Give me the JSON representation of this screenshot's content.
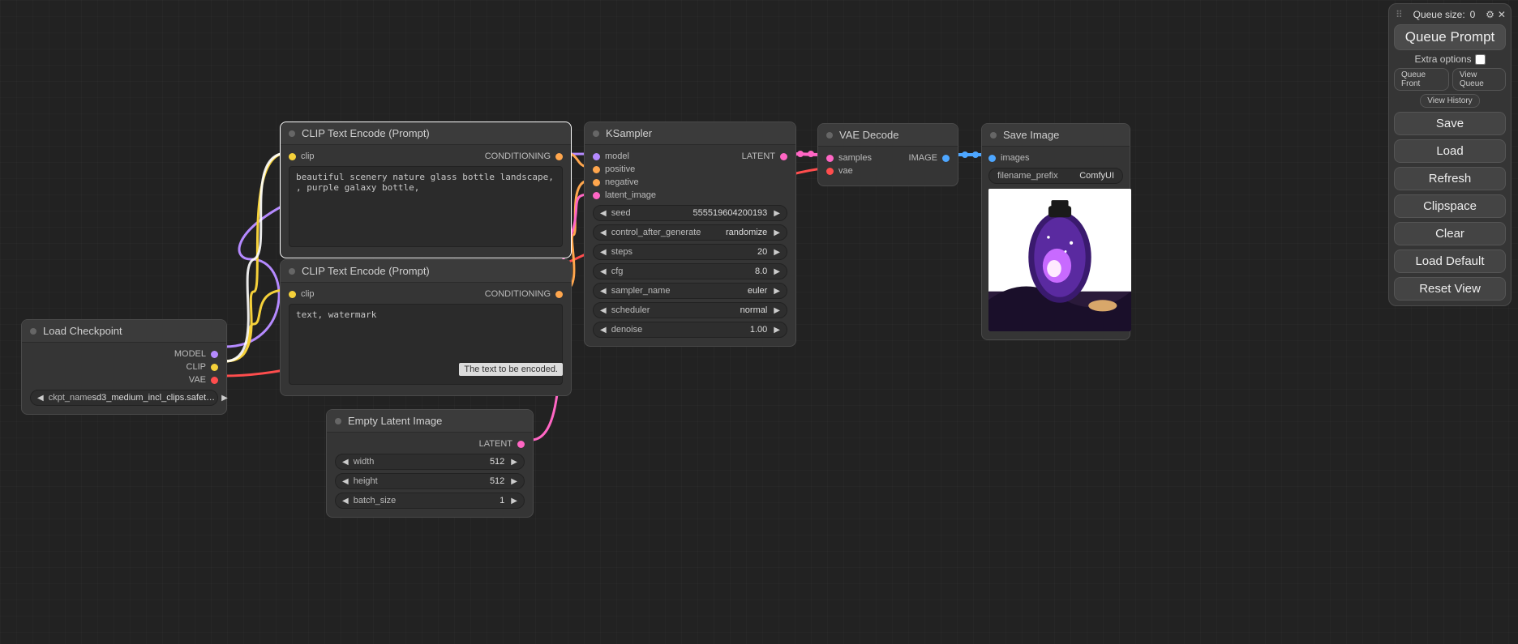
{
  "colors": {
    "model": "#b58aff",
    "clip": "#f5d13a",
    "vae": "#ff4d4d",
    "conditioning": "#ffa64d",
    "latent": "#ff66c4",
    "image": "#4da6ff",
    "neutral": "#bcbcbc"
  },
  "panel": {
    "queue_label": "Queue size:",
    "queue_size": 0,
    "queue_prompt": "Queue Prompt",
    "extra_options": "Extra options",
    "queue_front": "Queue Front",
    "view_queue": "View Queue",
    "view_history": "View History",
    "save": "Save",
    "load": "Load",
    "refresh": "Refresh",
    "clipspace": "Clipspace",
    "clear": "Clear",
    "load_default": "Load Default",
    "reset_view": "Reset View"
  },
  "nodes": {
    "load_checkpoint": {
      "title": "Load Checkpoint",
      "outputs": {
        "model": "MODEL",
        "clip": "CLIP",
        "vae": "VAE"
      },
      "param_label": "ckpt_name",
      "param_value": "sd3_medium_incl_clips.safet…"
    },
    "clip_pos": {
      "title": "CLIP Text Encode (Prompt)",
      "input": "clip",
      "output": "CONDITIONING",
      "text": "beautiful scenery nature glass bottle landscape, , purple galaxy bottle,"
    },
    "clip_neg": {
      "title": "CLIP Text Encode (Prompt)",
      "input": "clip",
      "output": "CONDITIONING",
      "text": "text, watermark",
      "tooltip": "The text to be encoded."
    },
    "empty_latent": {
      "title": "Empty Latent Image",
      "output": "LATENT",
      "params": [
        {
          "label": "width",
          "value": "512"
        },
        {
          "label": "height",
          "value": "512"
        },
        {
          "label": "batch_size",
          "value": "1"
        }
      ]
    },
    "ksampler": {
      "title": "KSampler",
      "inputs": {
        "model": "model",
        "positive": "positive",
        "negative": "negative",
        "latent_image": "latent_image"
      },
      "output": "LATENT",
      "params": [
        {
          "label": "seed",
          "value": "555519604200193"
        },
        {
          "label": "control_after_generate",
          "value": "randomize"
        },
        {
          "label": "steps",
          "value": "20"
        },
        {
          "label": "cfg",
          "value": "8.0"
        },
        {
          "label": "sampler_name",
          "value": "euler"
        },
        {
          "label": "scheduler",
          "value": "normal"
        },
        {
          "label": "denoise",
          "value": "1.00"
        }
      ]
    },
    "vae_decode": {
      "title": "VAE Decode",
      "inputs": {
        "samples": "samples",
        "vae": "vae"
      },
      "output": "IMAGE"
    },
    "save_image": {
      "title": "Save Image",
      "input": "images",
      "param_label": "filename_prefix",
      "param_value": "ComfyUI"
    }
  }
}
